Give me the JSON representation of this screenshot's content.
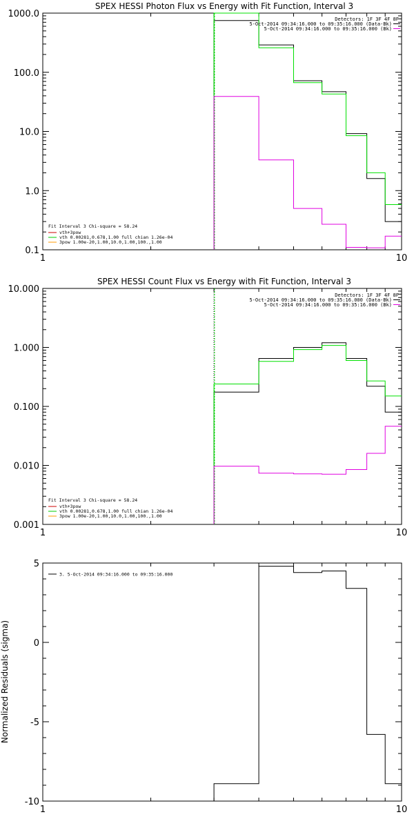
{
  "chart_data": [
    {
      "type": "line",
      "title": "SPEX HESSI Photon Flux vs Energy with Fit Function, Interval 3",
      "xlim": [
        1,
        10
      ],
      "ylim": [
        0.1,
        1000
      ],
      "xscale": "log",
      "yscale": "log",
      "x_ticks": [
        "1",
        "10"
      ],
      "y_ticks": [
        "0.1",
        "1.0",
        "10.0",
        "100.0",
        "1000.0"
      ],
      "vline_x": 3,
      "legend_top": [
        "Detectors: 1F 3F 4F 8F",
        "5-Oct-2014 09:34:16.000 to 09:35:16.000 (Data-Bk)",
        "5-Oct-2014 09:34:16.000 to 09:35:16.000 (Bk)"
      ],
      "legend_bottom": [
        "Fit Interval 3   Chi-square = 58.24",
        "vth+3pow",
        "vth 0.00281,0.678,1.00  full chian 1.26e-04",
        "3pow 1.00e-20,1.00,10.0,1.00,100.,1.00"
      ],
      "legend_bottom_colors": [
        "#000000",
        "#cc0000",
        "#00cc00",
        "#ff9900"
      ],
      "series": [
        {
          "color": "#000000",
          "edges": [
            3,
            4,
            5,
            6,
            7,
            8,
            9,
            10
          ],
          "values": [
            750,
            290,
            72,
            47,
            9.2,
            1.6,
            0.3
          ]
        },
        {
          "color": "#00e000",
          "edges": [
            3,
            4,
            5,
            6,
            7,
            8,
            9,
            10
          ],
          "values": [
            1010,
            260,
            67,
            43,
            8.5,
            2.0,
            0.58
          ]
        },
        {
          "color": "#e000e0",
          "edges": [
            3,
            4,
            5,
            6,
            7,
            8,
            9,
            10
          ],
          "values": [
            39,
            3.3,
            0.5,
            0.27,
            0.11,
            0.108,
            0.17
          ]
        }
      ]
    },
    {
      "type": "line",
      "title": "SPEX HESSI Count Flux vs Energy with Fit Function, Interval 3",
      "xlim": [
        1,
        10
      ],
      "ylim": [
        0.001,
        10
      ],
      "xscale": "log",
      "yscale": "log",
      "x_ticks": [
        "1",
        "10"
      ],
      "y_ticks": [
        "0.001",
        "0.010",
        "0.100",
        "1.000",
        "10.000"
      ],
      "vline_x": 3,
      "legend_top": [
        "Detectors: 1F 3F 4F 8F",
        "5-Oct-2014 09:34:16.000 to 09:35:16.000 (Data-Bk)",
        "5-Oct-2014 09:34:16.000 to 09:35:16.000 (Bk)"
      ],
      "legend_bottom": [
        "Fit Interval 3   Chi-square = 58.24",
        "vth+3pow",
        "vth 0.00281,0.678,1.00  full chian 1.26e-04",
        "3pow 1.00e-20,1.00,10.0,1.00,100.,1.00"
      ],
      "legend_bottom_colors": [
        "#000000",
        "#cc0000",
        "#00cc00",
        "#ff9900"
      ],
      "series": [
        {
          "color": "#000000",
          "edges": [
            3,
            4,
            5,
            6,
            7,
            8,
            9,
            10
          ],
          "values": [
            0.175,
            0.65,
            1.0,
            1.2,
            0.65,
            0.22,
            0.08
          ]
        },
        {
          "color": "#00e000",
          "edges": [
            3,
            4,
            5,
            6,
            7,
            8,
            9,
            10
          ],
          "values": [
            0.24,
            0.58,
            0.92,
            1.08,
            0.6,
            0.27,
            0.15
          ]
        },
        {
          "color": "#e000e0",
          "edges": [
            3,
            4,
            5,
            6,
            7,
            8,
            9,
            10
          ],
          "values": [
            0.0097,
            0.0074,
            0.0072,
            0.0071,
            0.0085,
            0.016,
            0.046
          ]
        }
      ]
    },
    {
      "type": "line",
      "title": "",
      "ylabel": "Normalized Residuals (sigma)",
      "xlim": [
        1,
        10
      ],
      "ylim": [
        -10,
        5
      ],
      "xscale": "log",
      "yscale": "linear",
      "x_ticks": [
        "1",
        "10"
      ],
      "y_ticks": [
        "5",
        "0",
        "-5",
        "-10"
      ],
      "legend_top": [
        "3.  5-Oct-2014 09:34:16.000 to 09:35:16.000"
      ],
      "series": [
        {
          "color": "#000000",
          "edges": [
            3,
            4,
            5,
            6,
            7,
            8,
            9,
            10
          ],
          "values": [
            -8.9,
            4.8,
            4.4,
            4.5,
            3.4,
            -5.8,
            -8.9
          ]
        }
      ]
    }
  ]
}
